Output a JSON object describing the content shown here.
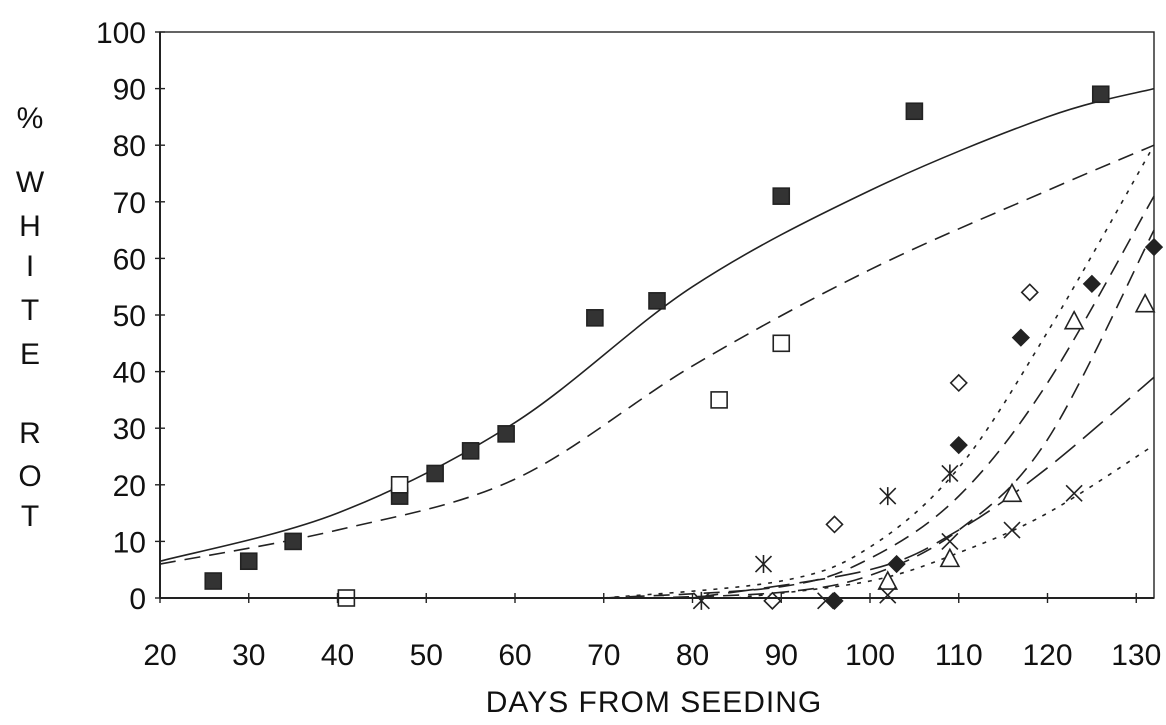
{
  "chart_data": {
    "type": "scatter",
    "title": "",
    "xlabel": "DAYS FROM SEEDING",
    "ylabel_chars": [
      "%",
      "W",
      "H",
      "I",
      "T",
      "E",
      "R",
      "O",
      "T"
    ],
    "xlim": [
      20,
      132
    ],
    "ylim": [
      0,
      100
    ],
    "x_ticks": [
      20,
      30,
      40,
      50,
      60,
      70,
      80,
      90,
      100,
      110,
      120,
      130
    ],
    "y_ticks": [
      0,
      10,
      20,
      30,
      40,
      50,
      60,
      70,
      80,
      90,
      100
    ],
    "grid": false,
    "legend": "none",
    "series": [
      {
        "marker": "filled-square",
        "points": [
          [
            26,
            3
          ],
          [
            30,
            6.5
          ],
          [
            35,
            10
          ],
          [
            47,
            18
          ],
          [
            51,
            22
          ],
          [
            55,
            26
          ],
          [
            59,
            29
          ],
          [
            69,
            49.5
          ],
          [
            76,
            52.5
          ],
          [
            90,
            71
          ],
          [
            105,
            86
          ],
          [
            126,
            89
          ]
        ]
      },
      {
        "marker": "open-square",
        "points": [
          [
            41,
            0
          ],
          [
            47,
            20
          ],
          [
            83,
            35
          ],
          [
            90,
            45
          ]
        ]
      },
      {
        "marker": "asterisk",
        "points": [
          [
            81,
            -0.5
          ],
          [
            88,
            6
          ],
          [
            102,
            18
          ],
          [
            109,
            22
          ]
        ]
      },
      {
        "marker": "open-diamond",
        "points": [
          [
            89,
            -0.5
          ],
          [
            96,
            13
          ],
          [
            110,
            38
          ],
          [
            118,
            54
          ]
        ]
      },
      {
        "marker": "filled-diamond",
        "points": [
          [
            96,
            -0.5
          ],
          [
            103,
            6
          ],
          [
            110,
            27
          ],
          [
            117,
            46
          ],
          [
            125,
            55.5
          ],
          [
            132,
            62
          ]
        ]
      },
      {
        "marker": "open-triangle",
        "points": [
          [
            102,
            3
          ],
          [
            109,
            7
          ],
          [
            116,
            18.5
          ],
          [
            123,
            49
          ],
          [
            131,
            52
          ]
        ]
      },
      {
        "marker": "x-cross",
        "points": [
          [
            95,
            -0.5
          ],
          [
            102,
            0.5
          ],
          [
            109,
            10
          ],
          [
            116,
            12
          ],
          [
            123,
            18.5
          ]
        ]
      }
    ],
    "fitted_curves": [
      {
        "style": "solid",
        "points": [
          [
            20,
            6.5
          ],
          [
            40,
            15
          ],
          [
            60,
            31
          ],
          [
            80,
            55
          ],
          [
            100,
            72
          ],
          [
            120,
            85
          ],
          [
            132,
            90
          ]
        ]
      },
      {
        "style": "dashed",
        "points": [
          [
            20,
            6
          ],
          [
            40,
            12
          ],
          [
            60,
            21
          ],
          [
            80,
            41
          ],
          [
            100,
            58
          ],
          [
            120,
            72
          ],
          [
            132,
            80
          ]
        ]
      },
      {
        "style": "dotted",
        "points": [
          [
            70,
            0
          ],
          [
            90,
            3
          ],
          [
            100,
            9
          ],
          [
            110,
            23
          ],
          [
            120,
            47
          ],
          [
            132,
            80
          ]
        ]
      },
      {
        "style": "dashed",
        "points": [
          [
            70,
            0
          ],
          [
            90,
            2
          ],
          [
            100,
            7
          ],
          [
            110,
            18
          ],
          [
            120,
            38
          ],
          [
            132,
            71
          ]
        ]
      },
      {
        "style": "dashed",
        "points": [
          [
            75,
            0
          ],
          [
            90,
            1
          ],
          [
            100,
            4
          ],
          [
            110,
            12
          ],
          [
            120,
            28
          ],
          [
            132,
            65
          ]
        ]
      },
      {
        "style": "longdash",
        "points": [
          [
            80,
            0
          ],
          [
            100,
            5
          ],
          [
            110,
            12
          ],
          [
            120,
            23
          ],
          [
            132,
            39
          ]
        ]
      },
      {
        "style": "dotted",
        "points": [
          [
            85,
            0
          ],
          [
            100,
            3
          ],
          [
            110,
            8
          ],
          [
            120,
            15
          ],
          [
            132,
            27
          ]
        ]
      }
    ]
  }
}
